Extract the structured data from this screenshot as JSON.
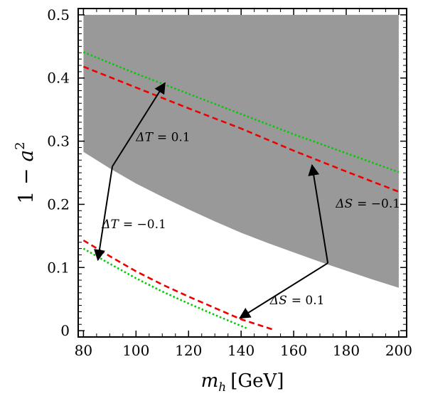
{
  "chart_data": {
    "type": "area",
    "xlabel": {
      "main": "m",
      "sub": "h",
      "unit": "[GeV]"
    },
    "ylabel": {
      "prefix": "1 − ",
      "var": "a",
      "sup": "2"
    },
    "xlim": [
      78,
      203
    ],
    "ylim": [
      -0.01,
      0.51
    ],
    "xticks": [
      80,
      100,
      120,
      140,
      160,
      180,
      200
    ],
    "xtick_labels": [
      "80",
      "100",
      "120",
      "140",
      "160",
      "180",
      "200"
    ],
    "yticks": [
      0,
      0.1,
      0.2,
      0.3,
      0.4,
      0.5
    ],
    "ytick_labels": [
      "0",
      "0.1",
      "0.2",
      "0.3",
      "0.4",
      "0.5"
    ],
    "grid": false,
    "shaded_region": {
      "color": "#999999",
      "upper": 0.5,
      "lower_x": [
        80,
        90,
        100,
        110,
        120,
        130,
        140,
        150,
        160,
        170,
        180,
        190,
        200
      ],
      "lower_y": [
        0.283,
        0.257,
        0.233,
        0.212,
        0.192,
        0.173,
        0.155,
        0.139,
        0.124,
        0.109,
        0.095,
        0.081,
        0.068
      ]
    },
    "series": [
      {
        "color": "#00cc00",
        "style": "dotted",
        "x": [
          80,
          100,
          120,
          140,
          160,
          180,
          200
        ],
        "y": [
          0.441,
          0.407,
          0.375,
          0.343,
          0.311,
          0.281,
          0.251
        ]
      },
      {
        "color": "#ee0000",
        "style": "dashed",
        "x": [
          80,
          100,
          120,
          140,
          160,
          180,
          200
        ],
        "y": [
          0.418,
          0.385,
          0.352,
          0.32,
          0.285,
          0.252,
          0.22
        ]
      },
      {
        "color": "#ee0000",
        "style": "dashed",
        "x": [
          80,
          90,
          100,
          110,
          120,
          130,
          140,
          152
        ],
        "y": [
          0.143,
          0.118,
          0.094,
          0.073,
          0.054,
          0.036,
          0.018,
          0.002
        ]
      },
      {
        "color": "#00cc00",
        "style": "dotted",
        "x": [
          80,
          90,
          100,
          110,
          120,
          130,
          142
        ],
        "y": [
          0.13,
          0.106,
          0.083,
          0.062,
          0.043,
          0.025,
          0.004
        ]
      }
    ],
    "arrows": [
      {
        "x1": 91,
        "y1": 0.26,
        "x2": 111,
        "y2": 0.392
      },
      {
        "x1": 91,
        "y1": 0.26,
        "x2": 85.5,
        "y2": 0.112
      },
      {
        "x1": 173,
        "y1": 0.107,
        "x2": 167,
        "y2": 0.262
      },
      {
        "x1": 173,
        "y1": 0.107,
        "x2": 139.5,
        "y2": 0.02
      }
    ],
    "annotations": [
      {
        "var": "ΔT",
        "value": "= 0.1",
        "x": 100,
        "y": 0.3
      },
      {
        "var": "ΔT",
        "value": "= −0.1",
        "x": 87,
        "y": 0.162
      },
      {
        "var": "ΔS",
        "value": "= −0.1",
        "x": 176,
        "y": 0.195
      },
      {
        "var": "ΔS",
        "value": "= 0.1",
        "x": 151,
        "y": 0.042
      }
    ]
  }
}
